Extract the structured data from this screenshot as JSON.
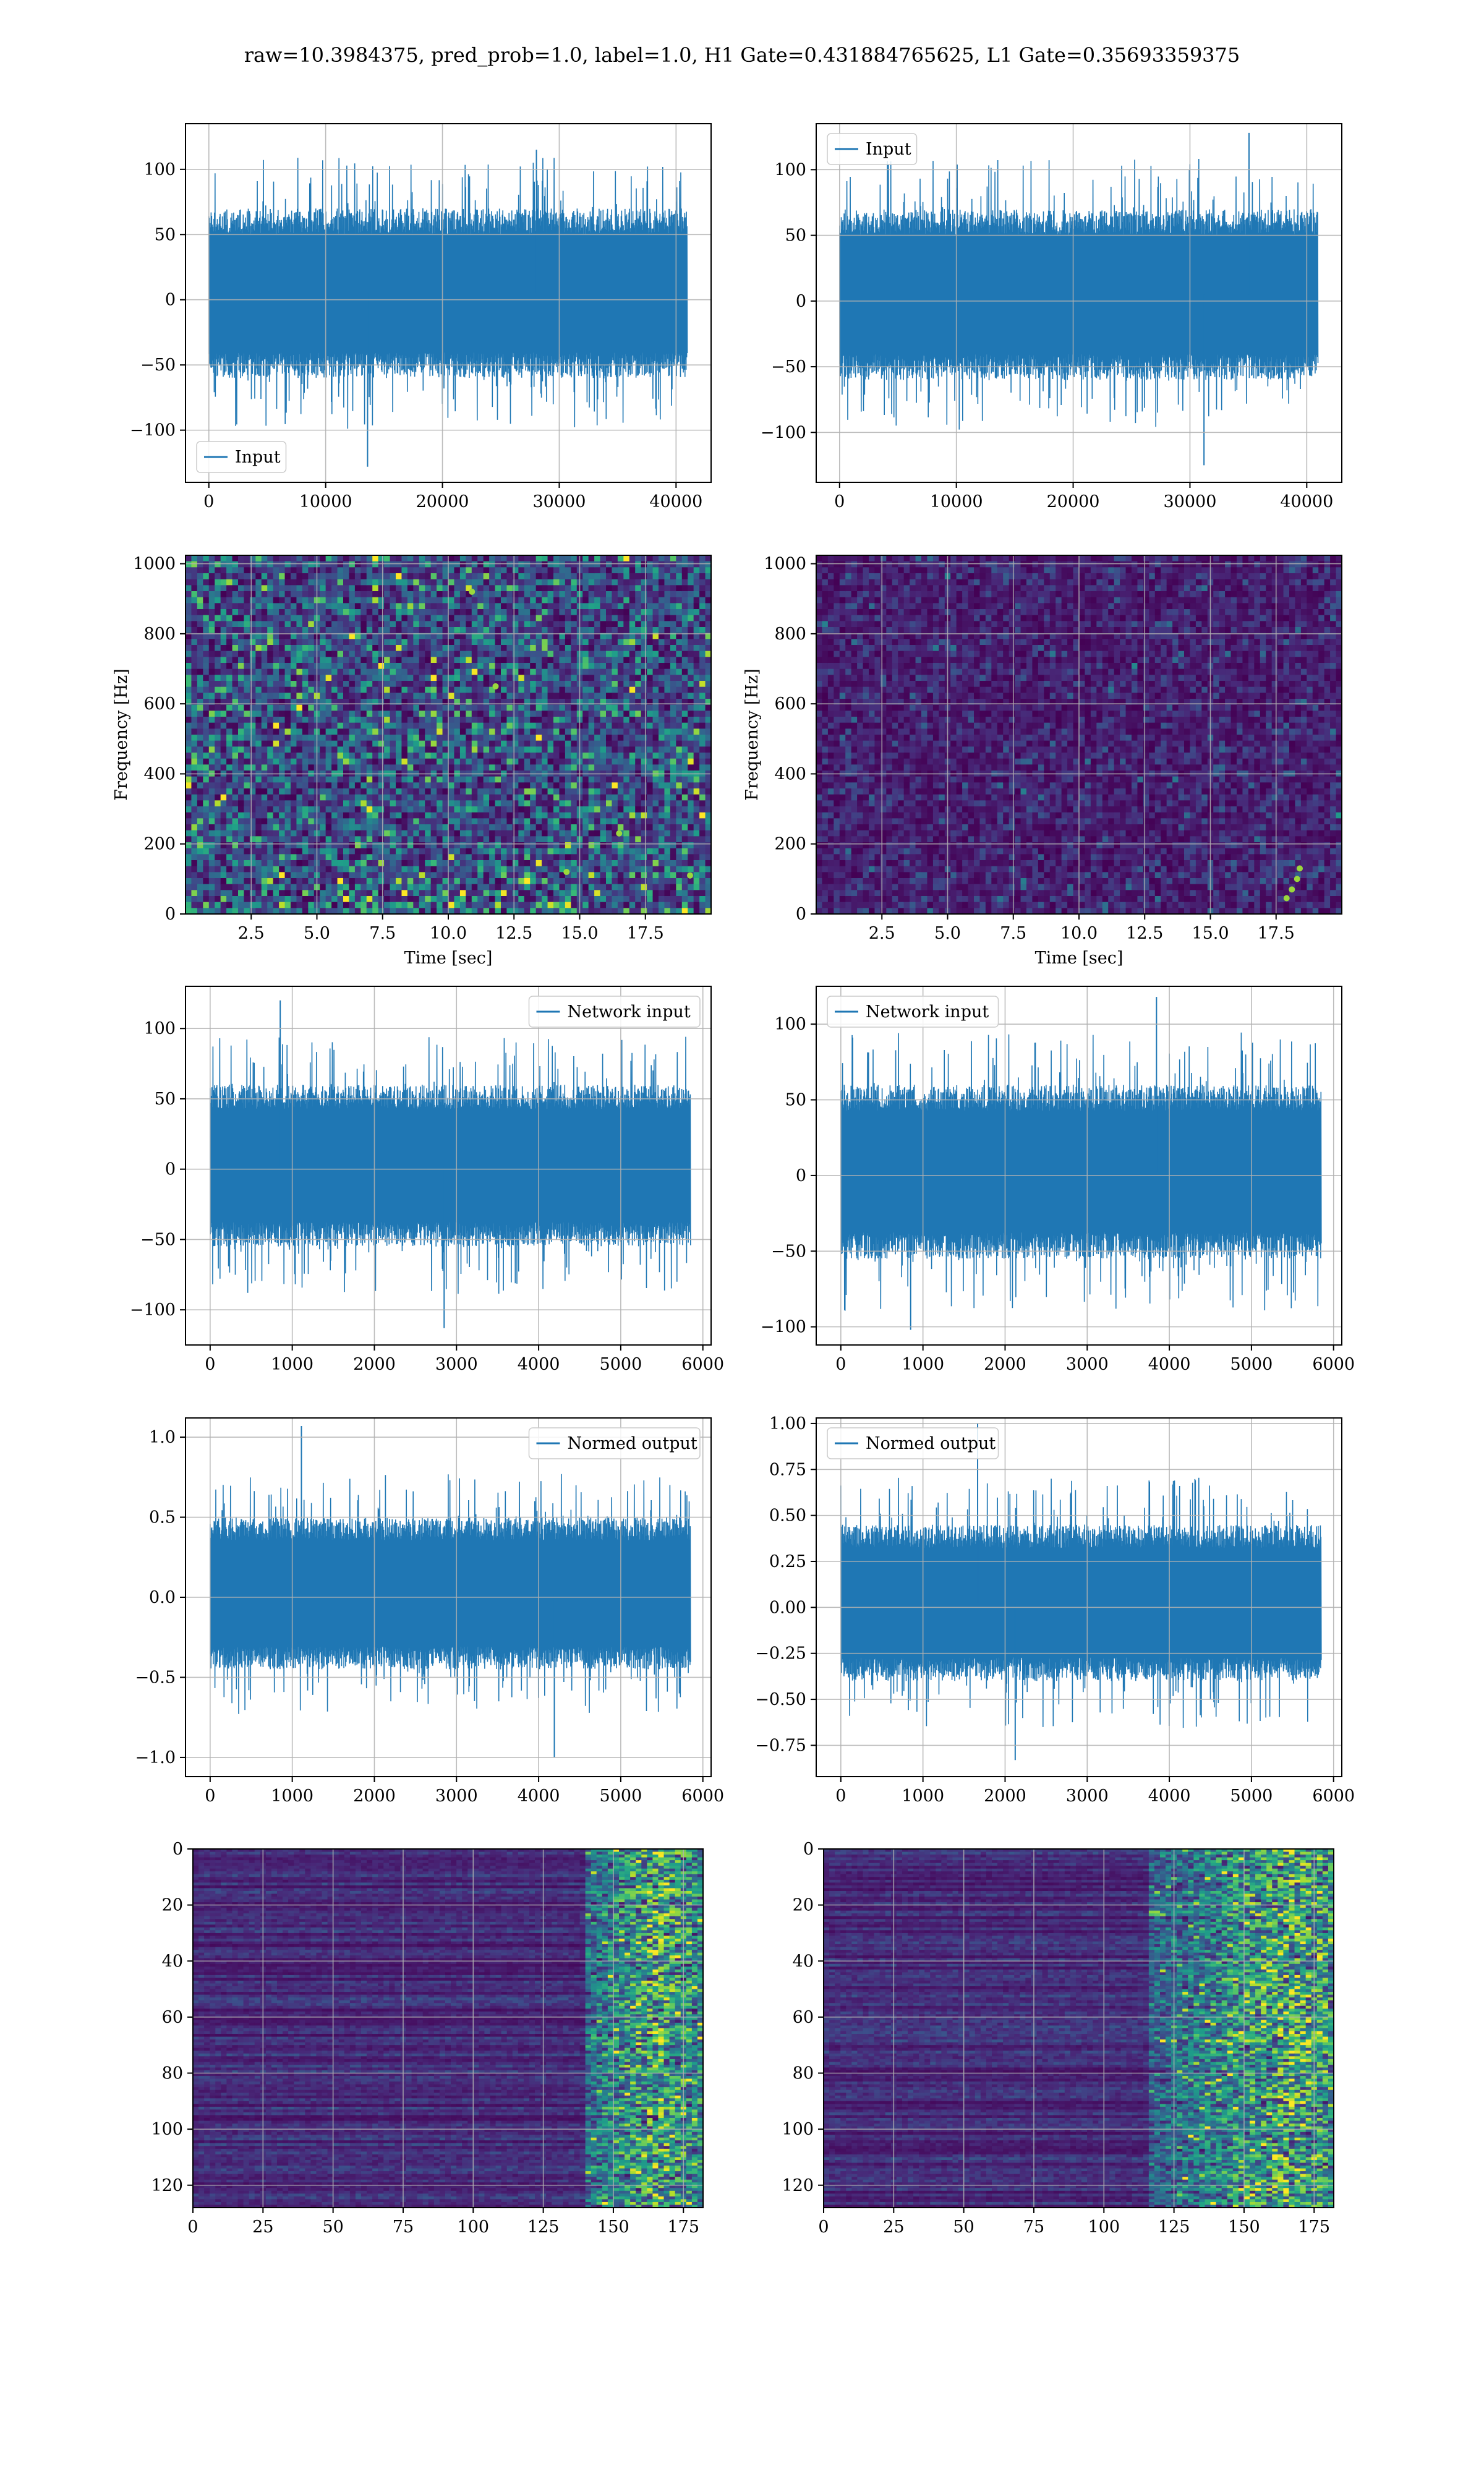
{
  "suptitle": "raw=10.3984375, pred_prob=1.0, label=1.0, H1 Gate=0.431884765625, L1 Gate=0.35693359375",
  "colors": {
    "line": "#1f77b4",
    "grid": "#b0b0b0",
    "viridis_dark": "#440154",
    "viridis_mid": "#21918c",
    "viridis_light": "#fde725"
  },
  "chart_data": [
    {
      "id": "h1-input",
      "type": "line",
      "title": "",
      "xlabel": "",
      "ylabel": "",
      "xlim": [
        -2000,
        43000
      ],
      "ylim": [
        -140,
        135
      ],
      "xticks": [
        0,
        10000,
        20000,
        30000,
        40000
      ],
      "yticks": [
        -100,
        -50,
        0,
        50,
        100
      ],
      "xtick_labels": [
        "0",
        "10000",
        "20000",
        "30000",
        "40000"
      ],
      "ytick_labels": [
        "−100",
        "−50",
        "0",
        "50",
        "100"
      ],
      "legend": {
        "label": "Input",
        "placement": "lower-left"
      },
      "series": [
        {
          "name": "Input",
          "x_range": [
            0,
            40960
          ],
          "typical_band": [
            -60,
            70
          ],
          "peak_max": 115,
          "peak_min": -128
        }
      ],
      "grid": true
    },
    {
      "id": "l1-input",
      "type": "line",
      "title": "",
      "xlabel": "",
      "ylabel": "",
      "xlim": [
        -2000,
        43000
      ],
      "ylim": [
        -138,
        135
      ],
      "xticks": [
        0,
        10000,
        20000,
        30000,
        40000
      ],
      "yticks": [
        -100,
        -50,
        0,
        50,
        100
      ],
      "xtick_labels": [
        "0",
        "10000",
        "20000",
        "30000",
        "40000"
      ],
      "ytick_labels": [
        "−100",
        "−50",
        "0",
        "50",
        "100"
      ],
      "legend": {
        "label": "Input",
        "placement": "upper-left"
      },
      "series": [
        {
          "name": "Input",
          "x_range": [
            0,
            40960
          ],
          "typical_band": [
            -60,
            70
          ],
          "peak_max": 128,
          "peak_min": -125
        }
      ],
      "grid": true
    },
    {
      "id": "h1-spectrogram",
      "type": "heatmap",
      "title": "",
      "xlabel": "Time [sec]",
      "ylabel": "Frequency [Hz]",
      "xlim": [
        0,
        20
      ],
      "ylim": [
        0,
        1024
      ],
      "xticks": [
        2.5,
        5.0,
        7.5,
        10.0,
        12.5,
        15.0,
        17.5
      ],
      "yticks": [
        0,
        200,
        400,
        600,
        800,
        1000
      ],
      "xtick_labels": [
        "2.5",
        "5.0",
        "7.5",
        "10.0",
        "12.5",
        "15.0",
        "17.5"
      ],
      "ytick_labels": [
        "0",
        "200",
        "400",
        "600",
        "800",
        "1000"
      ],
      "colormap": "viridis",
      "grid": true,
      "bright_spots": [
        {
          "t": 16.5,
          "f": 230
        },
        {
          "t": 19.2,
          "f": 110
        },
        {
          "t": 11.8,
          "f": 650
        },
        {
          "t": 10.9,
          "f": 920
        },
        {
          "t": 14.5,
          "f": 120
        }
      ]
    },
    {
      "id": "l1-spectrogram",
      "type": "heatmap",
      "title": "",
      "xlabel": "Time [sec]",
      "ylabel": "Frequency [Hz]",
      "xlim": [
        0,
        20
      ],
      "ylim": [
        0,
        1024
      ],
      "xticks": [
        2.5,
        5.0,
        7.5,
        10.0,
        12.5,
        15.0,
        17.5
      ],
      "yticks": [
        0,
        200,
        400,
        600,
        800,
        1000
      ],
      "xtick_labels": [
        "2.5",
        "5.0",
        "7.5",
        "10.0",
        "12.5",
        "15.0",
        "17.5"
      ],
      "ytick_labels": [
        "0",
        "200",
        "400",
        "600",
        "800",
        "1000"
      ],
      "colormap": "viridis",
      "grid": true,
      "bright_spots": [
        {
          "t": 18.1,
          "f": 70
        },
        {
          "t": 18.3,
          "f": 100
        },
        {
          "t": 18.4,
          "f": 130
        },
        {
          "t": 17.9,
          "f": 45
        }
      ]
    },
    {
      "id": "h1-network-input",
      "type": "line",
      "title": "",
      "xlabel": "",
      "ylabel": "",
      "xlim": [
        -300,
        6100
      ],
      "ylim": [
        -125,
        130
      ],
      "xticks": [
        0,
        1000,
        2000,
        3000,
        4000,
        5000,
        6000
      ],
      "yticks": [
        -100,
        -50,
        0,
        50,
        100
      ],
      "xtick_labels": [
        "0",
        "1000",
        "2000",
        "3000",
        "4000",
        "5000",
        "6000"
      ],
      "ytick_labels": [
        "−100",
        "−50",
        "0",
        "50",
        "100"
      ],
      "legend": {
        "label": "Network input",
        "placement": "upper-right"
      },
      "series": [
        {
          "name": "Network input",
          "x_range": [
            0,
            5850
          ],
          "typical_band": [
            -55,
            60
          ],
          "peak_max": 120,
          "peak_min": -113
        }
      ],
      "grid": true
    },
    {
      "id": "l1-network-input",
      "type": "line",
      "title": "",
      "xlabel": "",
      "ylabel": "",
      "xlim": [
        -300,
        6100
      ],
      "ylim": [
        -112,
        125
      ],
      "xticks": [
        0,
        1000,
        2000,
        3000,
        4000,
        5000,
        6000
      ],
      "yticks": [
        -100,
        -50,
        0,
        50,
        100
      ],
      "xtick_labels": [
        "0",
        "1000",
        "2000",
        "3000",
        "4000",
        "5000",
        "6000"
      ],
      "ytick_labels": [
        "−100",
        "−50",
        "0",
        "50",
        "100"
      ],
      "legend": {
        "label": "Network input",
        "placement": "upper-left"
      },
      "series": [
        {
          "name": "Network input",
          "x_range": [
            0,
            5850
          ],
          "typical_band": [
            -55,
            60
          ],
          "peak_max": 118,
          "peak_min": -102
        }
      ],
      "grid": true
    },
    {
      "id": "h1-normed-output",
      "type": "line",
      "title": "",
      "xlabel": "",
      "ylabel": "",
      "xlim": [
        -300,
        6100
      ],
      "ylim": [
        -1.12,
        1.12
      ],
      "xticks": [
        0,
        1000,
        2000,
        3000,
        4000,
        5000,
        6000
      ],
      "yticks": [
        -1.0,
        -0.5,
        0.0,
        0.5,
        1.0
      ],
      "xtick_labels": [
        "0",
        "1000",
        "2000",
        "3000",
        "4000",
        "5000",
        "6000"
      ],
      "ytick_labels": [
        "−1.0",
        "−0.5",
        "0.0",
        "0.5",
        "1.0"
      ],
      "legend": {
        "label": "Normed output",
        "placement": "upper-right"
      },
      "series": [
        {
          "name": "Normed output",
          "x_range": [
            0,
            5850
          ],
          "typical_band": [
            -0.45,
            0.5
          ],
          "peak_max": 1.07,
          "peak_min": -1.0
        }
      ],
      "grid": true
    },
    {
      "id": "l1-normed-output",
      "type": "line",
      "title": "",
      "xlabel": "",
      "ylabel": "",
      "xlim": [
        -300,
        6100
      ],
      "ylim": [
        -0.92,
        1.03
      ],
      "xticks": [
        0,
        1000,
        2000,
        3000,
        4000,
        5000,
        6000
      ],
      "yticks": [
        -0.75,
        -0.5,
        -0.25,
        0.0,
        0.25,
        0.5,
        0.75,
        1.0
      ],
      "xtick_labels": [
        "0",
        "1000",
        "2000",
        "3000",
        "4000",
        "5000",
        "6000"
      ],
      "ytick_labels": [
        "−0.75",
        "−0.50",
        "−0.25",
        "0.00",
        "0.25",
        "0.50",
        "0.75",
        "1.00"
      ],
      "legend": {
        "label": "Normed output",
        "placement": "upper-left"
      },
      "series": [
        {
          "name": "Normed output",
          "x_range": [
            0,
            5850
          ],
          "typical_band": [
            -0.4,
            0.45
          ],
          "peak_max": 1.0,
          "peak_min": -0.83
        }
      ],
      "grid": true
    },
    {
      "id": "h1-feature-map",
      "type": "heatmap",
      "title": "",
      "xlabel": "",
      "ylabel": "",
      "xlim": [
        0,
        182
      ],
      "ylim": [
        128,
        0
      ],
      "xticks": [
        0,
        25,
        50,
        75,
        100,
        125,
        150,
        175
      ],
      "yticks": [
        0,
        20,
        40,
        60,
        80,
        100,
        120
      ],
      "xtick_labels": [
        "0",
        "25",
        "50",
        "75",
        "100",
        "125",
        "150",
        "175"
      ],
      "ytick_labels": [
        "0",
        "20",
        "40",
        "60",
        "80",
        "100",
        "120"
      ],
      "colormap": "viridis",
      "grid": true,
      "active_region": {
        "x_from": 140,
        "x_to": 182,
        "peak_x": 165
      }
    },
    {
      "id": "l1-feature-map",
      "type": "heatmap",
      "title": "",
      "xlabel": "",
      "ylabel": "",
      "xlim": [
        0,
        182
      ],
      "ylim": [
        128,
        0
      ],
      "xticks": [
        0,
        25,
        50,
        75,
        100,
        125,
        150,
        175
      ],
      "yticks": [
        0,
        20,
        40,
        60,
        80,
        100,
        120
      ],
      "xtick_labels": [
        "0",
        "25",
        "50",
        "75",
        "100",
        "125",
        "150",
        "175"
      ],
      "ytick_labels": [
        "0",
        "20",
        "40",
        "60",
        "80",
        "100",
        "120"
      ],
      "colormap": "viridis",
      "grid": true,
      "active_region": {
        "x_from": 115,
        "x_to": 182,
        "peak_x": 165
      }
    }
  ]
}
